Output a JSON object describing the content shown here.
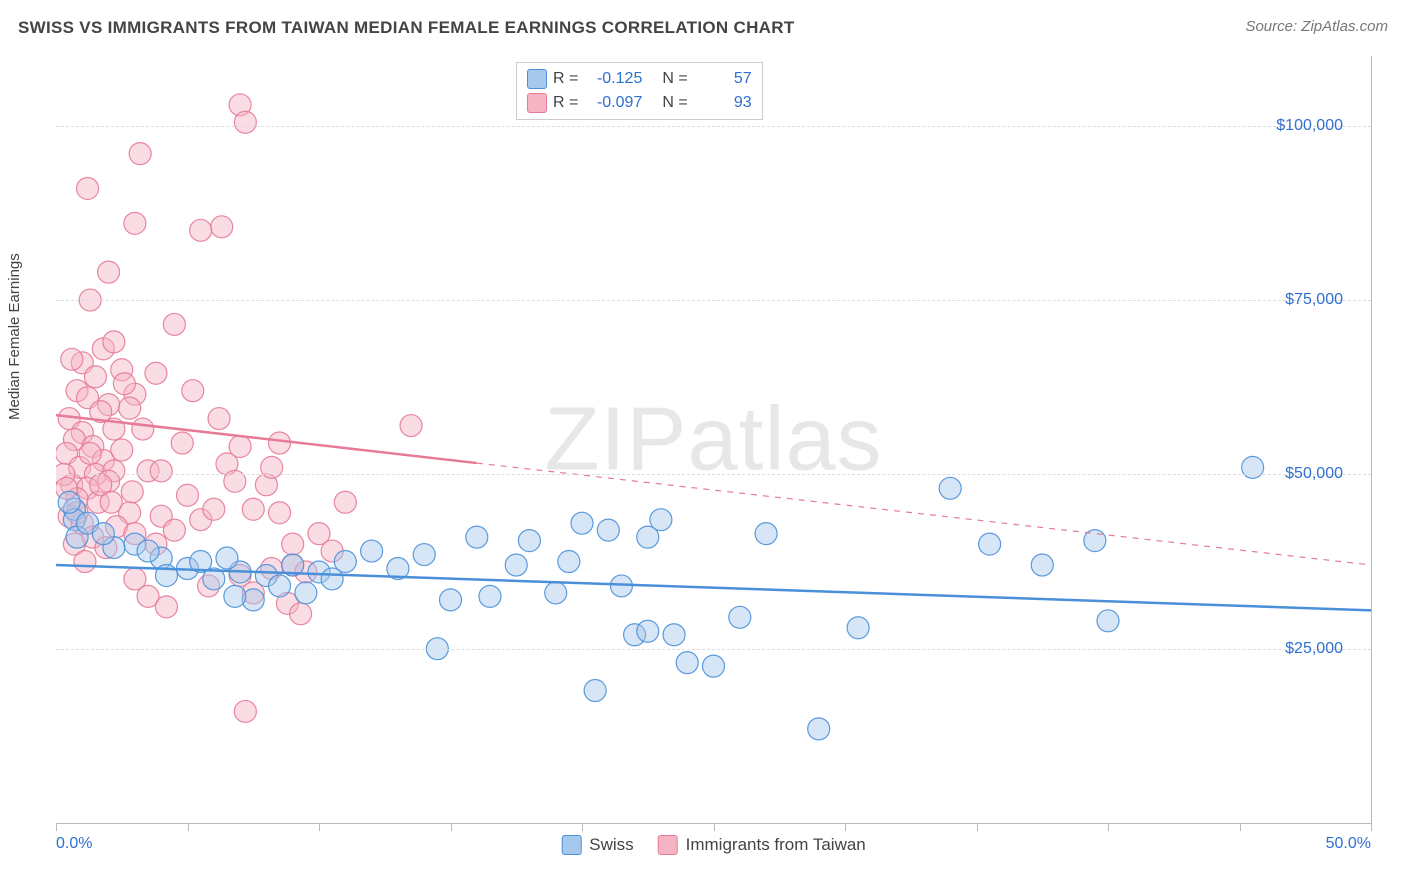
{
  "title": "SWISS VS IMMIGRANTS FROM TAIWAN MEDIAN FEMALE EARNINGS CORRELATION CHART",
  "source": "Source: ZipAtlas.com",
  "watermark": {
    "bold": "ZIP",
    "light": "atlas"
  },
  "chart": {
    "type": "scatter",
    "ylabel": "Median Female Earnings",
    "background_color": "#ffffff",
    "grid_color": "#dddddd",
    "border_color": "#bbbbbb",
    "axis_font_color": "#444444",
    "tick_font_color": "#2f6fd0",
    "tick_fontsize": 16,
    "label_fontsize": 15,
    "title_fontsize": 17,
    "marker_radius": 11,
    "marker_opacity": 0.45,
    "marker_stroke_opacity": 0.9,
    "trend_line_width": 2.5,
    "trend_dash_pattern": "6,6",
    "xlim": [
      0,
      50
    ],
    "ylim": [
      0,
      110000
    ],
    "x_ticks": [
      0,
      5,
      10,
      15,
      20,
      25,
      30,
      35,
      40,
      45,
      50
    ],
    "x_tick_labels": {
      "0": "0.0%",
      "50": "50.0%"
    },
    "y_gridlines": [
      25000,
      50000,
      75000,
      100000
    ],
    "y_tick_labels": {
      "25000": "$25,000",
      "50000": "$50,000",
      "75000": "$75,000",
      "100000": "$100,000"
    },
    "legend_top": [
      {
        "series": "swiss",
        "R_label": "R =",
        "R": "-0.125",
        "N_label": "N =",
        "N": "57"
      },
      {
        "series": "taiwan",
        "R_label": "R =",
        "R": "-0.097",
        "N_label": "N =",
        "N": "93"
      }
    ],
    "legend_bottom": [
      {
        "series": "swiss",
        "label": "Swiss"
      },
      {
        "series": "taiwan",
        "label": "Immigrants from Taiwan"
      }
    ],
    "series": {
      "swiss": {
        "fill_color": "#a6c8ec",
        "stroke_color": "#4a90d9",
        "trend": {
          "x1": 0,
          "y1": 37000,
          "x2": 50,
          "y2": 30500,
          "solid_until": 50
        },
        "points": [
          [
            0.7,
            45000
          ],
          [
            0.7,
            43500
          ],
          [
            0.8,
            41000
          ],
          [
            1.2,
            43000
          ],
          [
            0.5,
            46000
          ],
          [
            3.0,
            40000
          ],
          [
            2.2,
            39500
          ],
          [
            4.0,
            38000
          ],
          [
            3.5,
            39000
          ],
          [
            1.8,
            41500
          ],
          [
            5.0,
            36500
          ],
          [
            5.5,
            37500
          ],
          [
            6.0,
            35000
          ],
          [
            7.0,
            36000
          ],
          [
            6.5,
            38000
          ],
          [
            8.0,
            35500
          ],
          [
            9.0,
            37000
          ],
          [
            10.0,
            36000
          ],
          [
            11.0,
            37500
          ],
          [
            4.2,
            35500
          ],
          [
            8.5,
            34000
          ],
          [
            7.5,
            32000
          ],
          [
            9.5,
            33000
          ],
          [
            10.5,
            35000
          ],
          [
            6.8,
            32500
          ],
          [
            12.0,
            39000
          ],
          [
            13.0,
            36500
          ],
          [
            14.0,
            38500
          ],
          [
            15.0,
            32000
          ],
          [
            16.0,
            41000
          ],
          [
            17.5,
            37000
          ],
          [
            18.0,
            40500
          ],
          [
            19.5,
            37500
          ],
          [
            20.0,
            43000
          ],
          [
            21.0,
            42000
          ],
          [
            22.5,
            41000
          ],
          [
            23.0,
            43500
          ],
          [
            27.0,
            41500
          ],
          [
            14.5,
            25000
          ],
          [
            16.5,
            32500
          ],
          [
            20.5,
            19000
          ],
          [
            22.0,
            27000
          ],
          [
            22.5,
            27500
          ],
          [
            23.5,
            27000
          ],
          [
            25.0,
            22500
          ],
          [
            26.0,
            29500
          ],
          [
            29.0,
            13500
          ],
          [
            30.5,
            28000
          ],
          [
            34.0,
            48000
          ],
          [
            35.5,
            40000
          ],
          [
            37.5,
            37000
          ],
          [
            39.5,
            40500
          ],
          [
            40.0,
            29000
          ],
          [
            45.5,
            51000
          ],
          [
            24.0,
            23000
          ],
          [
            21.5,
            34000
          ],
          [
            19.0,
            33000
          ]
        ]
      },
      "taiwan": {
        "fill_color": "#f4b4c4",
        "stroke_color": "#e67a97",
        "trend": {
          "x1": 0,
          "y1": 58500,
          "x2": 50,
          "y2": 37000,
          "solid_until": 16
        },
        "points": [
          [
            7.0,
            103000
          ],
          [
            7.2,
            100500
          ],
          [
            3.2,
            96000
          ],
          [
            1.2,
            91000
          ],
          [
            3.0,
            86000
          ],
          [
            6.3,
            85500
          ],
          [
            5.5,
            85000
          ],
          [
            2.0,
            79000
          ],
          [
            1.3,
            75000
          ],
          [
            4.5,
            71500
          ],
          [
            1.8,
            68000
          ],
          [
            2.2,
            69000
          ],
          [
            1.0,
            66000
          ],
          [
            0.6,
            66500
          ],
          [
            1.5,
            64000
          ],
          [
            2.5,
            65000
          ],
          [
            0.8,
            62000
          ],
          [
            1.2,
            61000
          ],
          [
            2.0,
            60000
          ],
          [
            3.0,
            61500
          ],
          [
            1.7,
            59000
          ],
          [
            2.8,
            59500
          ],
          [
            0.5,
            58000
          ],
          [
            1.0,
            56000
          ],
          [
            2.2,
            56500
          ],
          [
            0.7,
            55000
          ],
          [
            1.4,
            54000
          ],
          [
            2.5,
            53500
          ],
          [
            0.4,
            53000
          ],
          [
            1.8,
            52000
          ],
          [
            0.9,
            51000
          ],
          [
            1.5,
            50000
          ],
          [
            2.2,
            50500
          ],
          [
            3.5,
            50500
          ],
          [
            0.6,
            48500
          ],
          [
            1.2,
            48000
          ],
          [
            2.0,
            49000
          ],
          [
            0.8,
            46500
          ],
          [
            1.6,
            46000
          ],
          [
            2.8,
            44500
          ],
          [
            0.5,
            44000
          ],
          [
            1.0,
            43000
          ],
          [
            2.3,
            42500
          ],
          [
            1.4,
            41000
          ],
          [
            0.7,
            40000
          ],
          [
            1.9,
            39500
          ],
          [
            3.0,
            41500
          ],
          [
            3.8,
            40000
          ],
          [
            1.1,
            37500
          ],
          [
            4.0,
            44000
          ],
          [
            4.5,
            42000
          ],
          [
            5.0,
            47000
          ],
          [
            5.5,
            43500
          ],
          [
            6.0,
            45000
          ],
          [
            6.5,
            51500
          ],
          [
            6.8,
            49000
          ],
          [
            7.0,
            54000
          ],
          [
            7.5,
            45000
          ],
          [
            8.0,
            48500
          ],
          [
            8.2,
            51000
          ],
          [
            8.2,
            36500
          ],
          [
            8.5,
            44500
          ],
          [
            9.0,
            40000
          ],
          [
            9.0,
            37000
          ],
          [
            9.5,
            36000
          ],
          [
            3.0,
            35000
          ],
          [
            3.5,
            32500
          ],
          [
            4.2,
            31000
          ],
          [
            5.8,
            34000
          ],
          [
            7.0,
            35500
          ],
          [
            7.5,
            33000
          ],
          [
            8.8,
            31500
          ],
          [
            9.3,
            30000
          ],
          [
            13.5,
            57000
          ],
          [
            11.0,
            46000
          ],
          [
            10.0,
            41500
          ],
          [
            10.5,
            39000
          ],
          [
            4.0,
            50500
          ],
          [
            3.3,
            56500
          ],
          [
            4.8,
            54500
          ],
          [
            6.2,
            58000
          ],
          [
            2.6,
            63000
          ],
          [
            3.8,
            64500
          ],
          [
            5.2,
            62000
          ],
          [
            8.5,
            54500
          ],
          [
            7.2,
            16000
          ],
          [
            0.3,
            50000
          ],
          [
            0.4,
            48000
          ],
          [
            0.8,
            44500
          ],
          [
            1.3,
            53000
          ],
          [
            1.7,
            48500
          ],
          [
            2.1,
            46000
          ],
          [
            2.9,
            47500
          ]
        ]
      }
    }
  }
}
